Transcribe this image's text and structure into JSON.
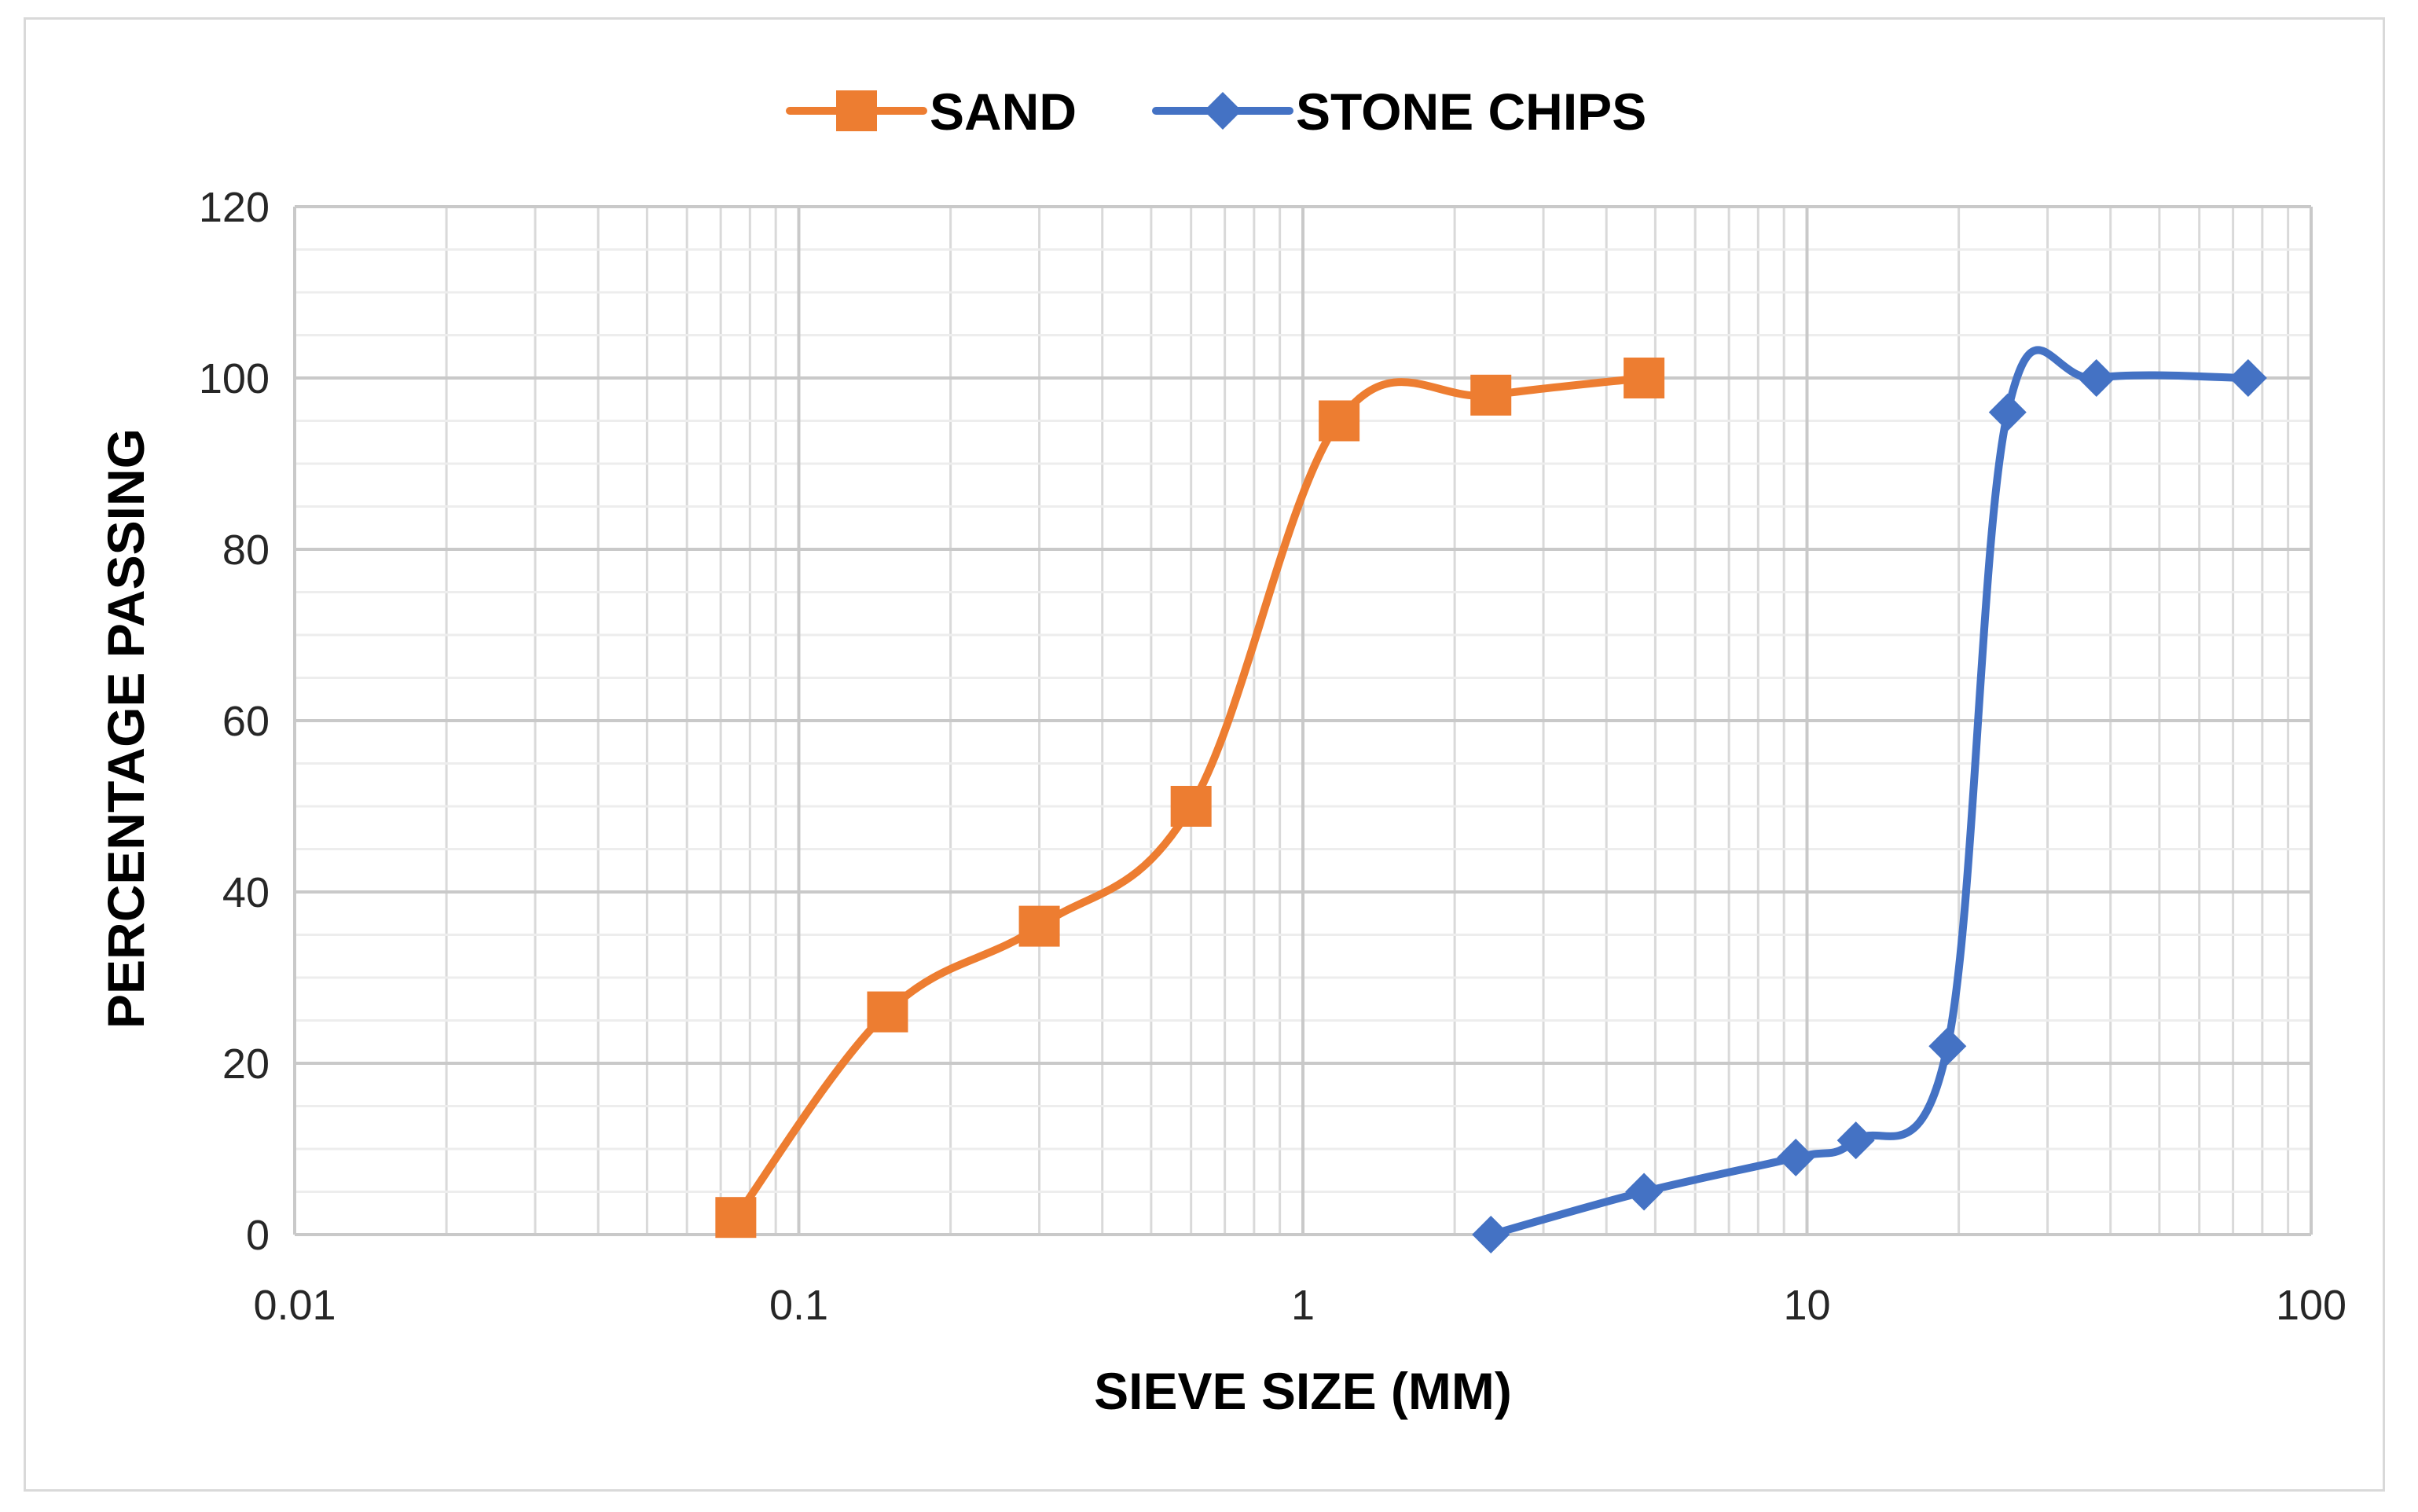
{
  "chart_data": {
    "type": "line",
    "title": "",
    "xlabel": "SIEVE SIZE (MM)",
    "ylabel": "PERCENTAGE PASSING",
    "xscale": "log",
    "xlim": [
      0.01,
      100
    ],
    "ylim": [
      0,
      120
    ],
    "grid": true,
    "legend_position": "top",
    "x_ticks": [
      0.01,
      0.1,
      1,
      10,
      100
    ],
    "x_tick_labels": [
      "0.01",
      "0.1",
      "1",
      "10",
      "100"
    ],
    "y_ticks": [
      0,
      20,
      40,
      60,
      80,
      100,
      120
    ],
    "y_tick_labels": [
      "0",
      "20",
      "40",
      "60",
      "80",
      "100",
      "120"
    ],
    "series": [
      {
        "name": "SAND",
        "color": "#ED7D31",
        "marker": "square",
        "x": [
          0.075,
          0.15,
          0.3,
          0.6,
          1.18,
          2.36,
          4.75
        ],
        "y": [
          2,
          26,
          36,
          50,
          95,
          98,
          100
        ]
      },
      {
        "name": "STONE CHIPS",
        "color": "#4472C4",
        "marker": "diamond",
        "x": [
          2.36,
          4.75,
          9.5,
          12.5,
          19,
          25,
          37.5,
          75
        ],
        "y": [
          0,
          5,
          9,
          11,
          22,
          96,
          100,
          100
        ]
      }
    ]
  }
}
